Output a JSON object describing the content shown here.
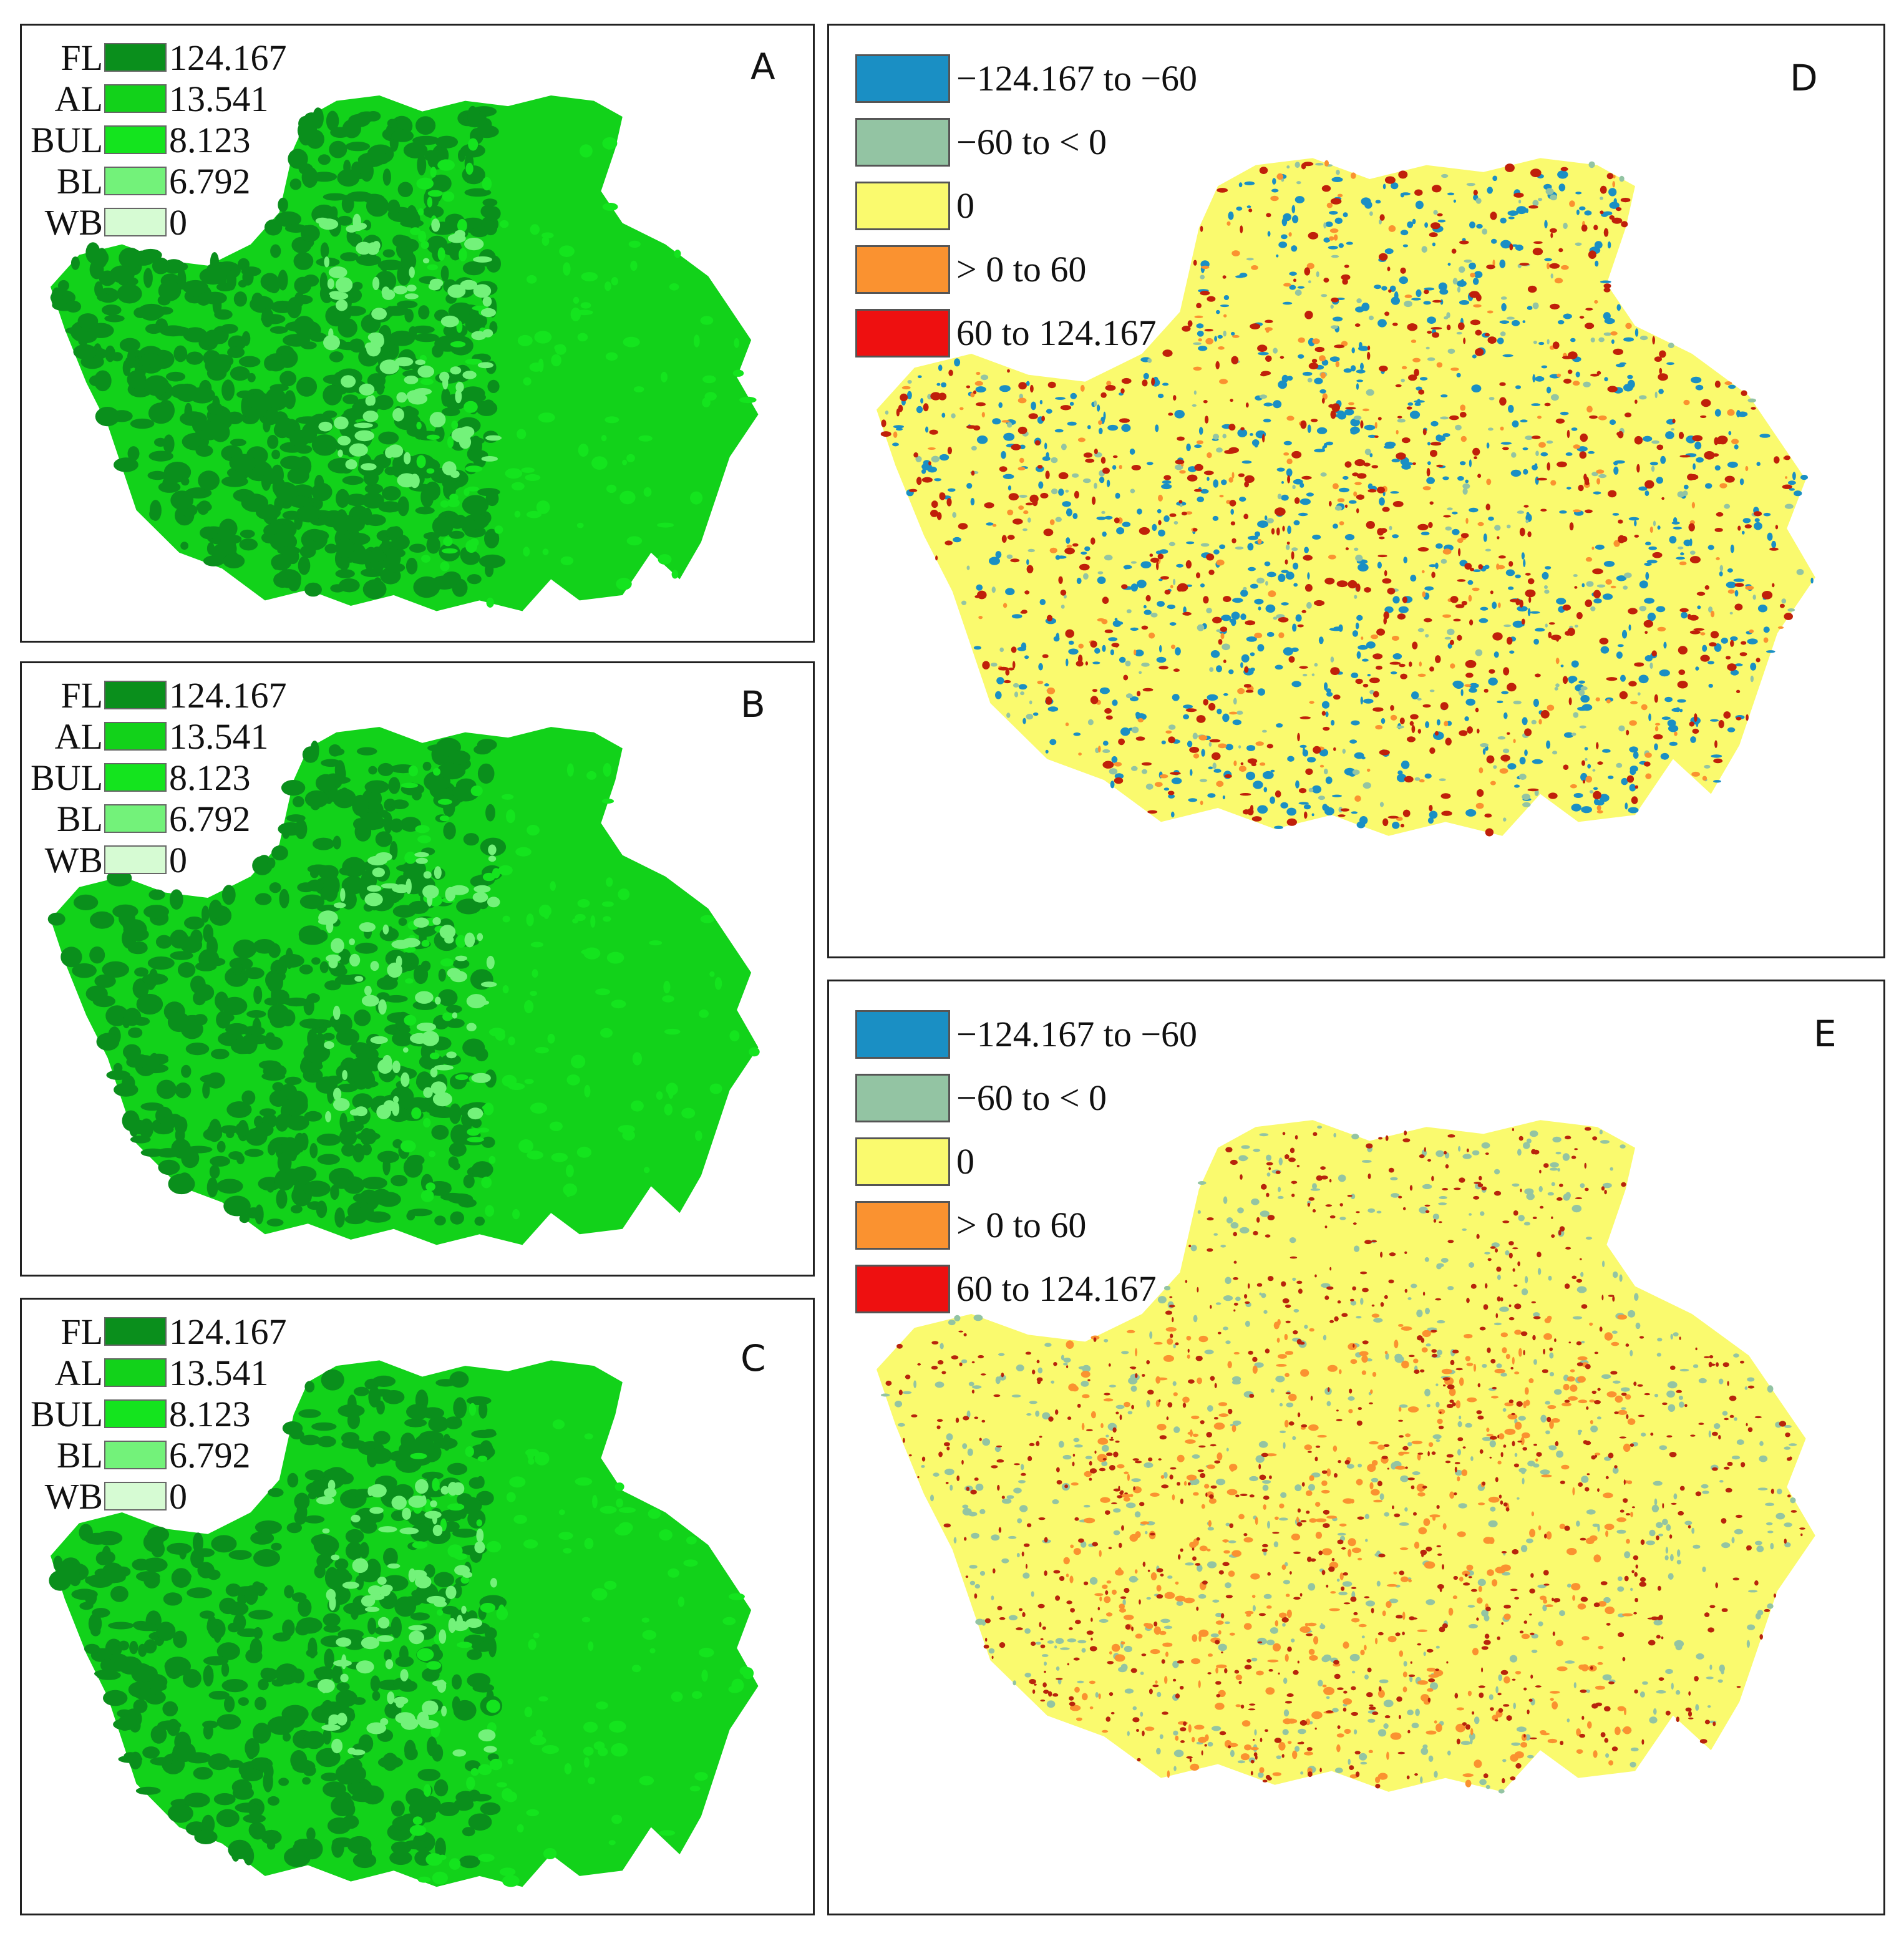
{
  "colors": {
    "FL": "#0a8f1c",
    "AL": "#12d21a",
    "BUL": "#14e41e",
    "BL": "#73f27a",
    "WB": "#d6fbd3",
    "class_neg_high": "#1a8fc4",
    "class_neg_low": "#93c4a3",
    "class_zero": "#fafa6e",
    "class_pos_low": "#fa9230",
    "class_pos_high": "#ee1010"
  },
  "panels": {
    "A": {
      "letter": "A"
    },
    "B": {
      "letter": "B"
    },
    "C": {
      "letter": "C"
    },
    "D": {
      "letter": "D"
    },
    "E": {
      "letter": "E"
    }
  },
  "landcover_legend": [
    {
      "code": "FL",
      "value": "124.167",
      "color_key": "FL"
    },
    {
      "code": "AL",
      "value": "13.541",
      "color_key": "AL"
    },
    {
      "code": "BUL",
      "value": "8.123",
      "color_key": "BUL"
    },
    {
      "code": "BL",
      "value": "6.792",
      "color_key": "BL"
    },
    {
      "code": "WB",
      "value": "0",
      "color_key": "WB"
    }
  ],
  "change_legend": [
    {
      "label": "−124.167 to −60",
      "color_key": "class_neg_high"
    },
    {
      "label": "−60 to < 0",
      "color_key": "class_neg_low"
    },
    {
      "label": "0",
      "color_key": "class_zero"
    },
    {
      "label": "> 0 to 60",
      "color_key": "class_pos_low"
    },
    {
      "label": "60 to 124.167",
      "color_key": "class_pos_high"
    }
  ]
}
